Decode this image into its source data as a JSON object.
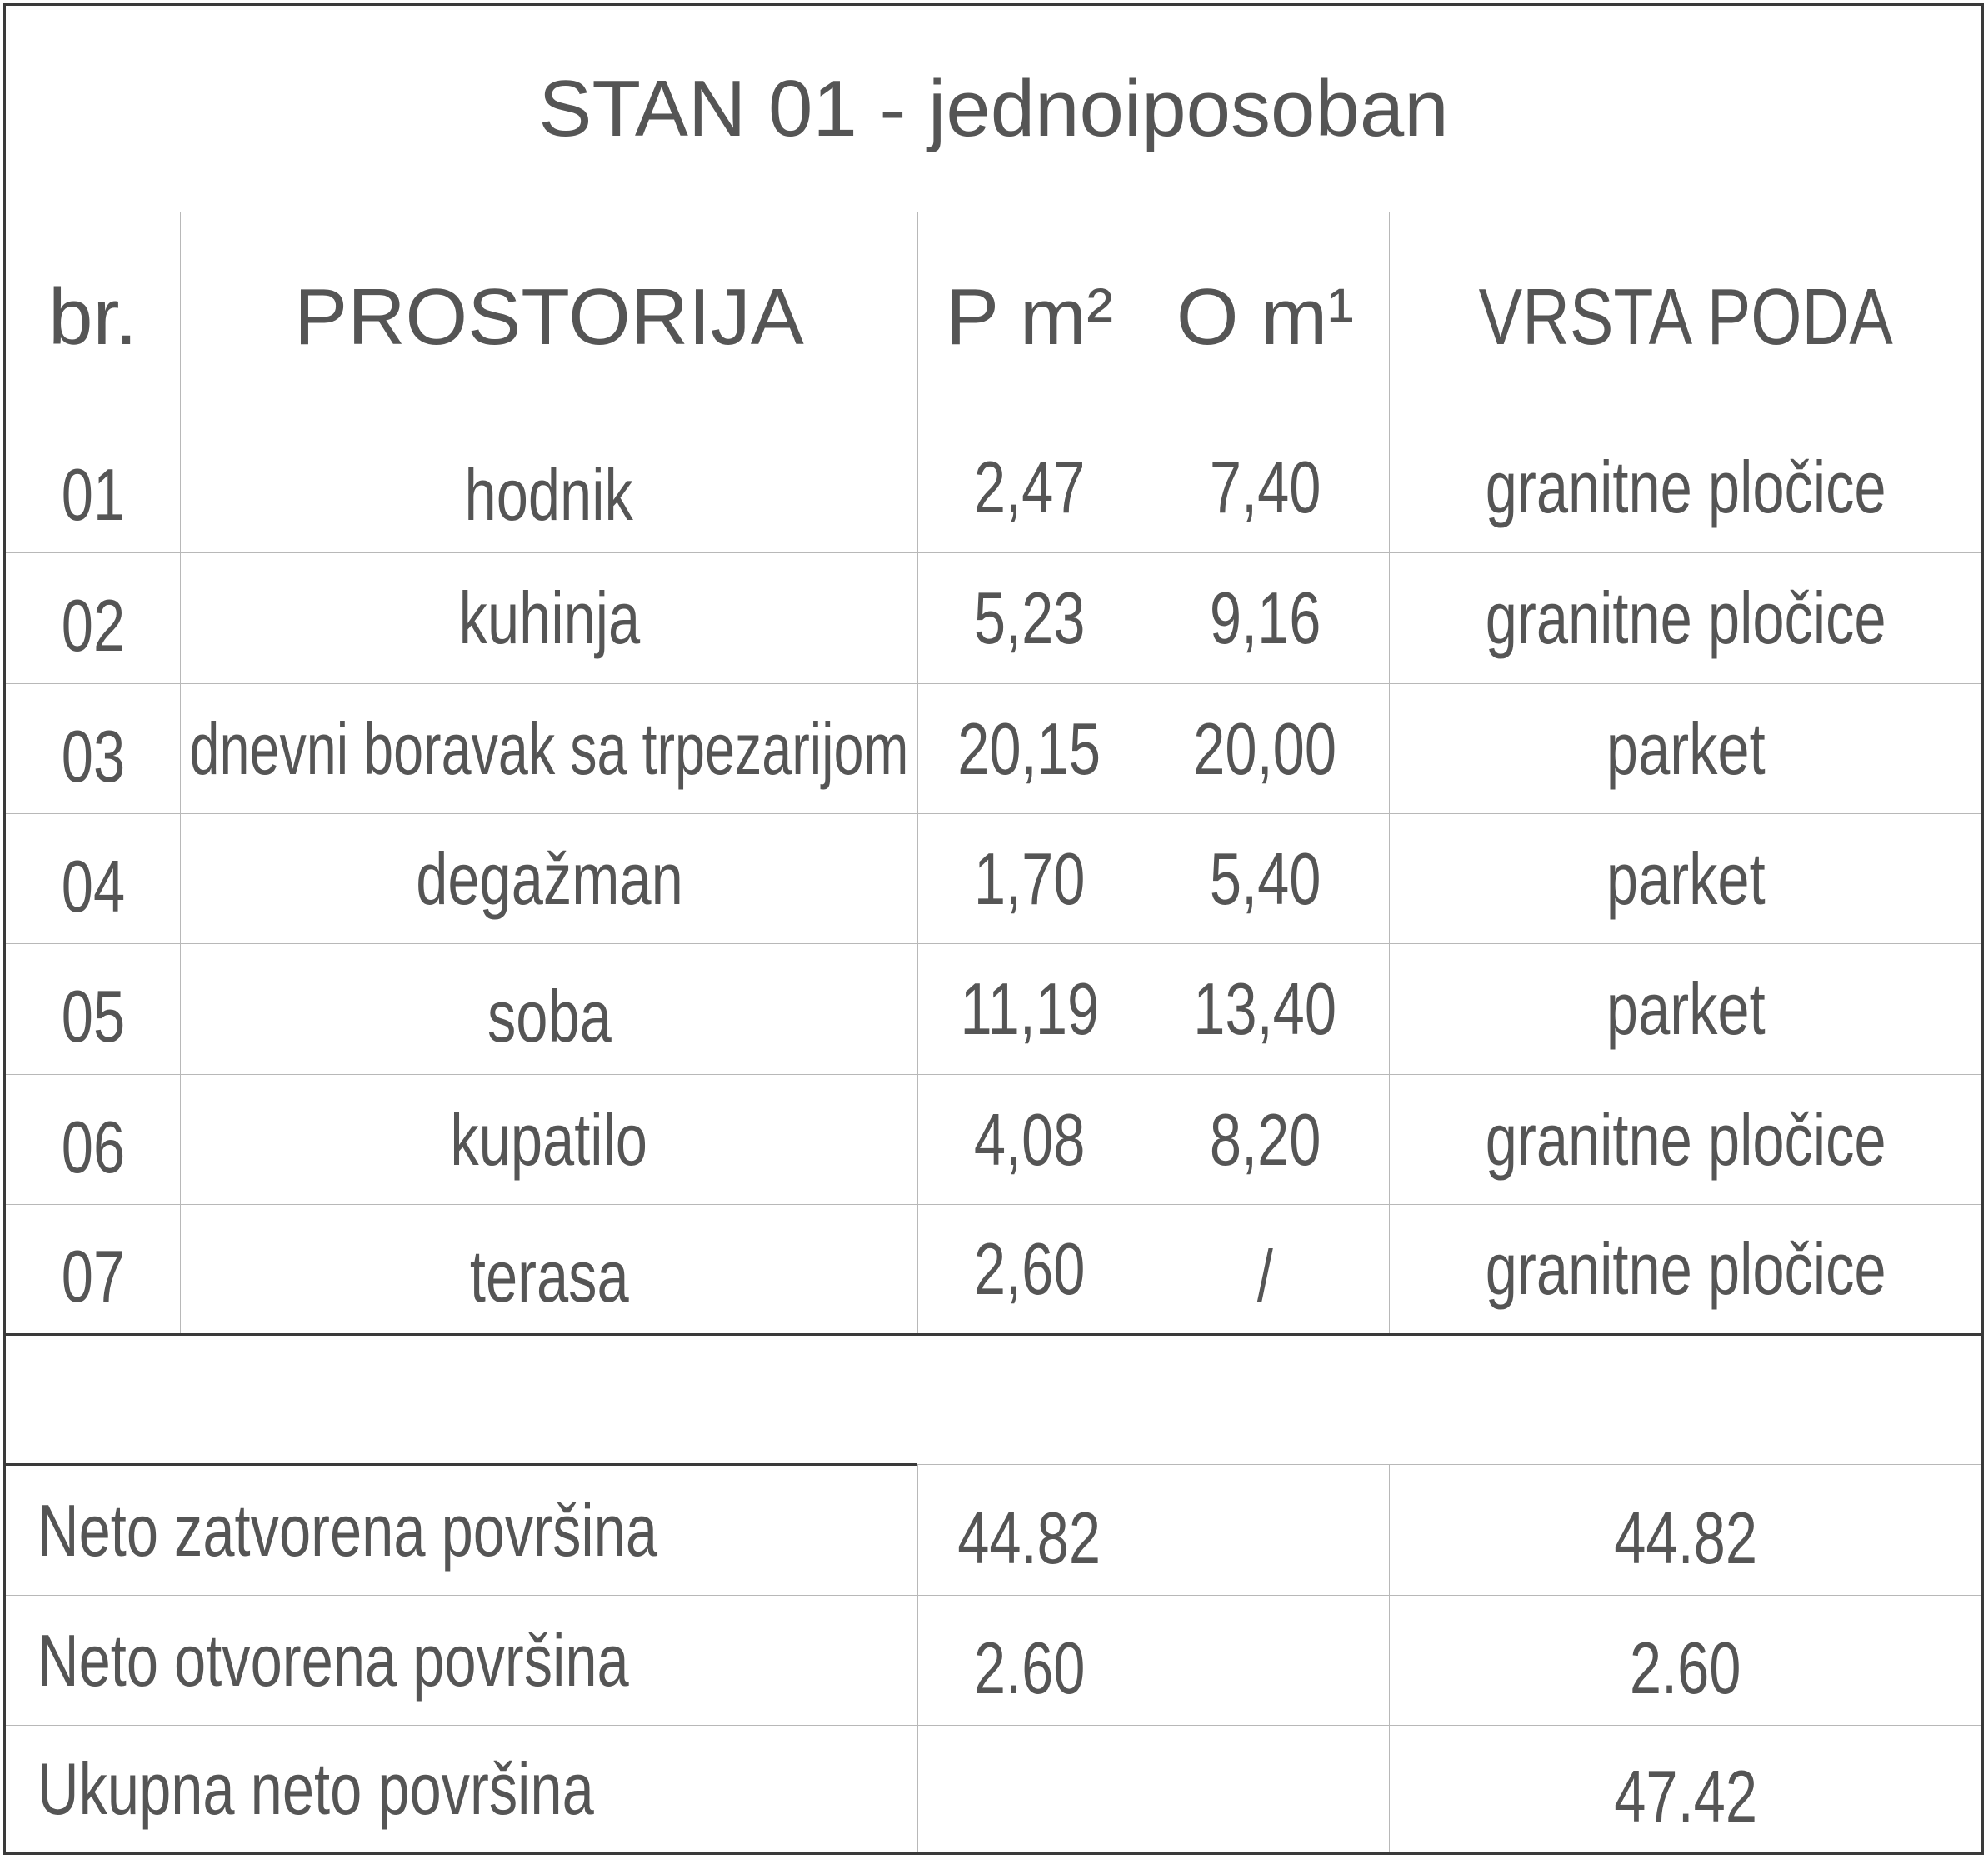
{
  "title": "STAN 01 - jednoiposoban",
  "headers": {
    "br": "br.",
    "room": "PROSTORIJA",
    "area": "P m²",
    "perimeter": "O m¹",
    "floor": "VRSTA PODA"
  },
  "rows": [
    {
      "br": "01",
      "room": "hodnik",
      "area": "2,47",
      "perimeter": "7,40",
      "floor": "granitne pločice"
    },
    {
      "br": "02",
      "room": "kuhinja",
      "area": "5,23",
      "perimeter": "9,16",
      "floor": "granitne pločice"
    },
    {
      "br": "03",
      "room": "dnevni boravak sa trpezarijom",
      "area": "20,15",
      "perimeter": "20,00",
      "floor": "parket"
    },
    {
      "br": "04",
      "room": "degažman",
      "area": "1,70",
      "perimeter": "5,40",
      "floor": "parket"
    },
    {
      "br": "05",
      "room": "soba",
      "area": "11,19",
      "perimeter": "13,40",
      "floor": "parket"
    },
    {
      "br": "06",
      "room": "kupatilo",
      "area": "4,08",
      "perimeter": "8,20",
      "floor": "granitne pločice"
    },
    {
      "br": "07",
      "room": "terasa",
      "area": "2,60",
      "perimeter": "/",
      "floor": "granitne pločice"
    }
  ],
  "summary": [
    {
      "label": "Neto zatvorena površina",
      "area": "44.82",
      "total": "44.82"
    },
    {
      "label": "Neto otvorena površina",
      "area": "2.60",
      "total": "2.60"
    },
    {
      "label": "Ukupna neto površina",
      "area": "",
      "total": "47.42"
    }
  ]
}
